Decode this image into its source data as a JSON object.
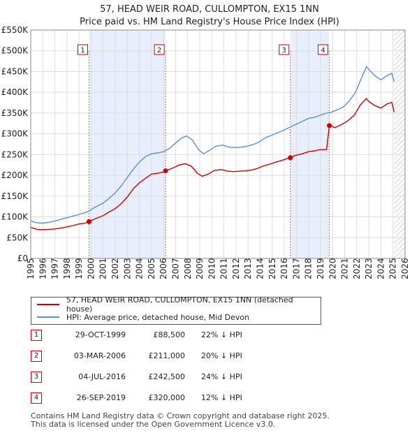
{
  "title_line1": "57, HEAD WEIR ROAD, CULLOMPTON, EX15 1NN",
  "title_line2": "Price paid vs. HM Land Registry's House Price Index (HPI)",
  "chart_data": {
    "type": "line",
    "x_range": [
      1995,
      2026
    ],
    "ylim": [
      0,
      550000
    ],
    "y_ticks": [
      {
        "value": 0,
        "label": "£0"
      },
      {
        "value": 50000,
        "label": "£50K"
      },
      {
        "value": 100000,
        "label": "£100K"
      },
      {
        "value": 150000,
        "label": "£150K"
      },
      {
        "value": 200000,
        "label": "£200K"
      },
      {
        "value": 250000,
        "label": "£250K"
      },
      {
        "value": 300000,
        "label": "£300K"
      },
      {
        "value": 350000,
        "label": "£350K"
      },
      {
        "value": 400000,
        "label": "£400K"
      },
      {
        "value": 450000,
        "label": "£450K"
      },
      {
        "value": 500000,
        "label": "£500K"
      },
      {
        "value": 550000,
        "label": "£550K"
      }
    ],
    "x_ticks": [
      "1995",
      "1996",
      "1997",
      "1998",
      "1999",
      "2000",
      "2001",
      "2002",
      "2003",
      "2004",
      "2005",
      "2006",
      "2007",
      "2008",
      "2009",
      "2010",
      "2011",
      "2012",
      "2013",
      "2014",
      "2015",
      "2016",
      "2017",
      "2018",
      "2019",
      "2020",
      "2021",
      "2022",
      "2023",
      "2024",
      "2025",
      "2026"
    ],
    "grid": true,
    "shaded_periods": [
      [
        1999.83,
        2006.17
      ],
      [
        2016.5,
        2019.73
      ]
    ],
    "hatched_after": 2025.1,
    "series": [
      {
        "name": "57, HEAD WEIR ROAD, CULLOMPTON, EX15 1NN (detached house)",
        "color": "#cc0000",
        "points": [
          [
            1995.0,
            75000
          ],
          [
            1995.5,
            70000
          ],
          [
            1996.0,
            69000
          ],
          [
            1996.5,
            70000
          ],
          [
            1997.0,
            71000
          ],
          [
            1997.5,
            73000
          ],
          [
            1998.0,
            76000
          ],
          [
            1998.5,
            79000
          ],
          [
            1999.0,
            83000
          ],
          [
            1999.5,
            85000
          ],
          [
            1999.83,
            88500
          ],
          [
            2000.3,
            95000
          ],
          [
            2001.0,
            103000
          ],
          [
            2001.5,
            112000
          ],
          [
            2002.0,
            120000
          ],
          [
            2002.5,
            132000
          ],
          [
            2003.0,
            148000
          ],
          [
            2003.5,
            168000
          ],
          [
            2004.0,
            182000
          ],
          [
            2004.5,
            193000
          ],
          [
            2005.0,
            203000
          ],
          [
            2005.5,
            205000
          ],
          [
            2006.0,
            208000
          ],
          [
            2006.17,
            211000
          ],
          [
            2006.7,
            217000
          ],
          [
            2007.3,
            225000
          ],
          [
            2007.8,
            228000
          ],
          [
            2008.3,
            222000
          ],
          [
            2008.8,
            205000
          ],
          [
            2009.2,
            198000
          ],
          [
            2009.7,
            203000
          ],
          [
            2010.2,
            212000
          ],
          [
            2010.8,
            214000
          ],
          [
            2011.3,
            210000
          ],
          [
            2011.8,
            209000
          ],
          [
            2012.3,
            210000
          ],
          [
            2012.8,
            211000
          ],
          [
            2013.3,
            213000
          ],
          [
            2013.8,
            217000
          ],
          [
            2014.3,
            223000
          ],
          [
            2014.8,
            227000
          ],
          [
            2015.3,
            232000
          ],
          [
            2015.8,
            236000
          ],
          [
            2016.2,
            240000
          ],
          [
            2016.5,
            242500
          ],
          [
            2016.9,
            248000
          ],
          [
            2017.5,
            252000
          ],
          [
            2018.0,
            257000
          ],
          [
            2018.5,
            259000
          ],
          [
            2019.0,
            262000
          ],
          [
            2019.5,
            262000
          ],
          [
            2019.73,
            320000
          ],
          [
            2020.2,
            315000
          ],
          [
            2020.7,
            322000
          ],
          [
            2021.2,
            330000
          ],
          [
            2021.8,
            345000
          ],
          [
            2022.3,
            370000
          ],
          [
            2022.8,
            385000
          ],
          [
            2023.0,
            378000
          ],
          [
            2023.5,
            368000
          ],
          [
            2024.0,
            362000
          ],
          [
            2024.5,
            372000
          ],
          [
            2024.9,
            376000
          ],
          [
            2025.1,
            352000
          ]
        ]
      },
      {
        "name": "HPI: Average price, detached house, Mid Devon",
        "color": "#5b8fd4",
        "points": [
          [
            1995.0,
            90000
          ],
          [
            1995.5,
            86000
          ],
          [
            1996.0,
            85000
          ],
          [
            1996.5,
            87000
          ],
          [
            1997.0,
            90000
          ],
          [
            1997.5,
            94000
          ],
          [
            1998.0,
            98000
          ],
          [
            1998.5,
            102000
          ],
          [
            1999.0,
            106000
          ],
          [
            1999.5,
            110000
          ],
          [
            1999.83,
            114000
          ],
          [
            2000.3,
            123000
          ],
          [
            2001.0,
            133000
          ],
          [
            2001.5,
            145000
          ],
          [
            2002.0,
            158000
          ],
          [
            2002.5,
            175000
          ],
          [
            2003.0,
            195000
          ],
          [
            2003.5,
            215000
          ],
          [
            2004.0,
            232000
          ],
          [
            2004.5,
            245000
          ],
          [
            2005.0,
            252000
          ],
          [
            2005.5,
            254000
          ],
          [
            2006.0,
            257000
          ],
          [
            2006.5,
            265000
          ],
          [
            2007.0,
            278000
          ],
          [
            2007.5,
            290000
          ],
          [
            2007.9,
            295000
          ],
          [
            2008.4,
            285000
          ],
          [
            2008.9,
            262000
          ],
          [
            2009.3,
            252000
          ],
          [
            2009.8,
            260000
          ],
          [
            2010.3,
            270000
          ],
          [
            2010.9,
            273000
          ],
          [
            2011.4,
            268000
          ],
          [
            2011.9,
            267000
          ],
          [
            2012.4,
            268000
          ],
          [
            2012.9,
            270000
          ],
          [
            2013.4,
            274000
          ],
          [
            2013.9,
            280000
          ],
          [
            2014.4,
            290000
          ],
          [
            2014.9,
            296000
          ],
          [
            2015.4,
            302000
          ],
          [
            2015.9,
            308000
          ],
          [
            2016.4,
            315000
          ],
          [
            2016.9,
            322000
          ],
          [
            2017.5,
            330000
          ],
          [
            2018.0,
            337000
          ],
          [
            2018.5,
            340000
          ],
          [
            2019.0,
            345000
          ],
          [
            2019.5,
            350000
          ],
          [
            2019.9,
            352000
          ],
          [
            2020.4,
            358000
          ],
          [
            2020.9,
            365000
          ],
          [
            2021.4,
            380000
          ],
          [
            2021.9,
            400000
          ],
          [
            2022.4,
            435000
          ],
          [
            2022.8,
            462000
          ],
          [
            2023.0,
            455000
          ],
          [
            2023.5,
            440000
          ],
          [
            2024.0,
            430000
          ],
          [
            2024.5,
            440000
          ],
          [
            2024.9,
            446000
          ],
          [
            2025.1,
            425000
          ]
        ]
      }
    ],
    "sale_markers": [
      {
        "id": "1",
        "year": 1999.83,
        "price": 88500
      },
      {
        "id": "2",
        "year": 2006.17,
        "price": 211000
      },
      {
        "id": "3",
        "year": 2016.5,
        "price": 242500
      },
      {
        "id": "4",
        "year": 2019.73,
        "price": 320000
      }
    ]
  },
  "legend": {
    "property_label": "57, HEAD WEIR ROAD, CULLOMPTON, EX15 1NN (detached house)",
    "hpi_label": "HPI: Average price, detached house, Mid Devon"
  },
  "sales": [
    {
      "num": "1",
      "date": "29-OCT-1999",
      "price": "£88,500",
      "hpi": "22% ↓ HPI"
    },
    {
      "num": "2",
      "date": "03-MAR-2006",
      "price": "£211,000",
      "hpi": "20% ↓ HPI"
    },
    {
      "num": "3",
      "date": "04-JUL-2016",
      "price": "£242,500",
      "hpi": "24% ↓ HPI"
    },
    {
      "num": "4",
      "date": "26-SEP-2019",
      "price": "£320,000",
      "hpi": "12% ↓ HPI"
    }
  ],
  "footer": {
    "line1": "Contains HM Land Registry data © Crown copyright and database right 2025.",
    "line2": "This data is licensed under the Open Government Licence v3.0."
  },
  "colors": {
    "property": "#cc0000",
    "hpi": "#5b8fd4",
    "shade": "#e8eefb",
    "grid": "#dddddd"
  }
}
